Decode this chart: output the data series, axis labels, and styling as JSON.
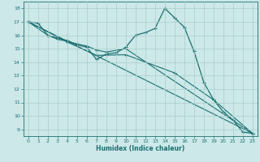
{
  "xlabel": "Humidex (Indice chaleur)",
  "bg_color": "#cce8e8",
  "line_color": "#1a7070",
  "grid_color": "#aacccc",
  "xlim": [
    -0.5,
    23.5
  ],
  "ylim": [
    8.5,
    18.5
  ],
  "xticks": [
    0,
    1,
    2,
    3,
    4,
    5,
    6,
    7,
    8,
    9,
    10,
    11,
    12,
    13,
    14,
    15,
    16,
    17,
    18,
    19,
    20,
    21,
    22,
    23
  ],
  "yticks": [
    9,
    10,
    11,
    12,
    13,
    14,
    15,
    16,
    17,
    18
  ],
  "series1": [
    [
      0,
      17.0
    ],
    [
      1,
      16.9
    ],
    [
      2,
      16.0
    ],
    [
      3,
      15.8
    ],
    [
      4,
      15.6
    ],
    [
      5,
      15.3
    ],
    [
      6,
      15.1
    ],
    [
      7,
      14.2
    ],
    [
      8,
      14.6
    ],
    [
      9,
      14.7
    ],
    [
      10,
      15.1
    ],
    [
      11,
      16.0
    ],
    [
      12,
      16.2
    ],
    [
      13,
      16.5
    ],
    [
      14,
      18.0
    ],
    [
      15,
      17.3
    ],
    [
      16,
      16.6
    ],
    [
      17,
      14.8
    ],
    [
      18,
      12.5
    ],
    [
      19,
      11.2
    ],
    [
      20,
      10.3
    ],
    [
      21,
      9.7
    ],
    [
      22,
      8.8
    ],
    [
      23,
      8.7
    ]
  ],
  "series2": [
    [
      0,
      17.0
    ],
    [
      2,
      16.0
    ],
    [
      3,
      15.7
    ],
    [
      4,
      15.55
    ],
    [
      5,
      15.35
    ],
    [
      6,
      15.2
    ],
    [
      7,
      14.9
    ],
    [
      8,
      14.75
    ],
    [
      10,
      15.0
    ],
    [
      23,
      8.7
    ]
  ],
  "series3": [
    [
      0,
      17.0
    ],
    [
      4,
      15.5
    ],
    [
      7,
      14.5
    ],
    [
      10,
      14.55
    ],
    [
      15,
      13.2
    ],
    [
      19,
      11.2
    ],
    [
      23,
      8.7
    ]
  ],
  "series4": [
    [
      0,
      17.0
    ],
    [
      23,
      8.7
    ]
  ]
}
